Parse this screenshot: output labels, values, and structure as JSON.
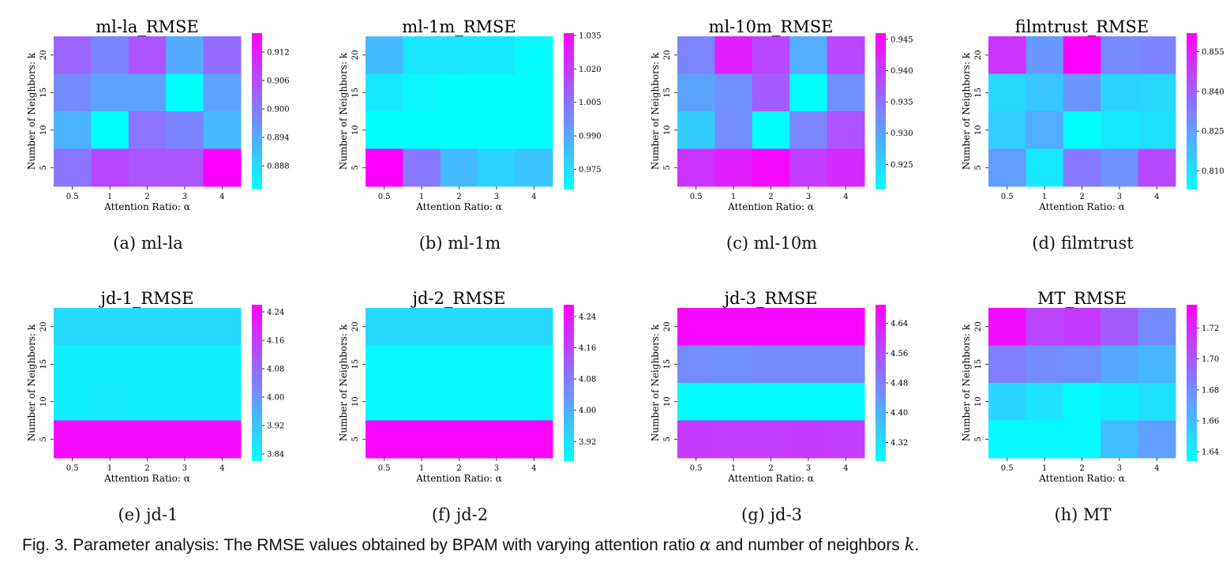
{
  "figure_caption": {
    "prefix": "Fig. 3. Parameter analysis: The RMSE values obtained by BPAM with varying attention ratio ",
    "alpha": "α",
    "middle": " and number of neighbors ",
    "k": "k",
    "suffix": "."
  },
  "colors": {
    "low": "#00ffff",
    "high": "#ff00ff"
  },
  "chart_data": [
    {
      "type": "heatmap",
      "title": "ml-la_RMSE",
      "subcaption_label": "(a)",
      "subcaption_name": "ml-la",
      "xlabel": "Attention Ratio: α",
      "ylabel": "Number of Neighbors: k",
      "x_ticks": [
        "0.5",
        "1",
        "2",
        "3",
        "4"
      ],
      "y_ticks": [
        "20",
        "15",
        "10",
        "5"
      ],
      "values": [
        [
          0.903,
          0.899,
          0.905,
          0.894,
          0.902
        ],
        [
          0.898,
          0.895,
          0.895,
          0.883,
          0.895
        ],
        [
          0.893,
          0.883,
          0.901,
          0.899,
          0.892
        ],
        [
          0.901,
          0.907,
          0.905,
          0.905,
          0.916
        ]
      ],
      "vmin": 0.883,
      "vmax": 0.916,
      "colorbar_ticks": [
        "0.888",
        "0.894",
        "0.900",
        "0.906",
        "0.912"
      ]
    },
    {
      "type": "heatmap",
      "title": "ml-1m_RMSE",
      "subcaption_label": "(b)",
      "subcaption_name": "ml-1m",
      "xlabel": "Attention Ratio: α",
      "ylabel": "Number of Neighbors: k",
      "x_ticks": [
        "0.5",
        "1",
        "2",
        "3",
        "4"
      ],
      "y_ticks": [
        "20",
        "15",
        "10",
        "5"
      ],
      "values": [
        [
          0.985,
          0.973,
          0.973,
          0.972,
          0.967
        ],
        [
          0.972,
          0.969,
          0.966,
          0.966,
          0.966
        ],
        [
          0.966,
          0.966,
          0.966,
          0.966,
          0.966
        ],
        [
          1.036,
          1.003,
          0.985,
          0.978,
          0.982
        ]
      ],
      "vmin": 0.966,
      "vmax": 1.036,
      "colorbar_ticks": [
        "0.975",
        "0.990",
        "1.005",
        "1.020",
        "1.035"
      ]
    },
    {
      "type": "heatmap",
      "title": "ml-10m_RMSE",
      "subcaption_label": "(c)",
      "subcaption_name": "ml-10m",
      "xlabel": "Attention Ratio: α",
      "ylabel": "Number of Neighbors: k",
      "x_ticks": [
        "0.5",
        "1",
        "2",
        "3",
        "4"
      ],
      "y_ticks": [
        "20",
        "15",
        "10",
        "5"
      ],
      "values": [
        [
          0.933,
          0.943,
          0.939,
          0.929,
          0.939
        ],
        [
          0.93,
          0.932,
          0.937,
          0.921,
          0.932
        ],
        [
          0.926,
          0.932,
          0.921,
          0.933,
          0.938
        ],
        [
          0.941,
          0.943,
          0.945,
          0.94,
          0.942
        ]
      ],
      "vmin": 0.921,
      "vmax": 0.946,
      "colorbar_ticks": [
        "0.925",
        "0.930",
        "0.935",
        "0.940",
        "0.945"
      ]
    },
    {
      "type": "heatmap",
      "title": "filmtrust_RMSE",
      "subcaption_label": "(d)",
      "subcaption_name": "filmtrust",
      "xlabel": "Attention Ratio: α",
      "ylabel": "Number of Neighbors: k",
      "x_ticks": [
        "0.5",
        "1",
        "2",
        "3",
        "4"
      ],
      "y_ticks": [
        "20",
        "15",
        "10",
        "5"
      ],
      "values": [
        [
          0.85,
          0.827,
          0.862,
          0.83,
          0.832
        ],
        [
          0.812,
          0.816,
          0.827,
          0.813,
          0.812
        ],
        [
          0.814,
          0.822,
          0.803,
          0.808,
          0.81
        ],
        [
          0.826,
          0.808,
          0.834,
          0.828,
          0.845
        ]
      ],
      "vmin": 0.803,
      "vmax": 0.862,
      "colorbar_ticks": [
        "0.810",
        "0.825",
        "0.840",
        "0.855"
      ]
    },
    {
      "type": "heatmap",
      "title": "jd-1_RMSE",
      "subcaption_label": "(e)",
      "subcaption_name": "jd-1",
      "xlabel": "Attention Ratio: α",
      "ylabel": "Number of Neighbors: k",
      "x_ticks": [
        "0.5",
        "1",
        "2",
        "3",
        "4"
      ],
      "y_ticks": [
        "20",
        "15",
        "10",
        "5"
      ],
      "values": [
        [
          3.885,
          3.885,
          3.885,
          3.885,
          3.885
        ],
        [
          3.85,
          3.85,
          3.85,
          3.85,
          3.85
        ],
        [
          3.85,
          3.855,
          3.85,
          3.85,
          3.85
        ],
        [
          4.245,
          4.245,
          4.245,
          4.245,
          4.245
        ]
      ],
      "vmin": 3.82,
      "vmax": 4.26,
      "colorbar_ticks": [
        "3.84",
        "3.92",
        "4.00",
        "4.08",
        "4.16",
        "4.24"
      ]
    },
    {
      "type": "heatmap",
      "title": "jd-2_RMSE",
      "subcaption_label": "(f)",
      "subcaption_name": "jd-2",
      "xlabel": "Attention Ratio: α",
      "ylabel": "Number of Neighbors: k",
      "x_ticks": [
        "0.5",
        "1",
        "2",
        "3",
        "4"
      ],
      "y_ticks": [
        "20",
        "15",
        "10",
        "5"
      ],
      "values": [
        [
          3.93,
          3.93,
          3.93,
          3.93,
          3.93
        ],
        [
          3.88,
          3.88,
          3.88,
          3.88,
          3.88
        ],
        [
          3.88,
          3.88,
          3.88,
          3.88,
          3.88
        ],
        [
          4.26,
          4.26,
          4.26,
          4.26,
          4.26
        ]
      ],
      "vmin": 3.87,
      "vmax": 4.27,
      "colorbar_ticks": [
        "3.92",
        "4.00",
        "4.08",
        "4.16",
        "4.24"
      ]
    },
    {
      "type": "heatmap",
      "title": "jd-3_RMSE",
      "subcaption_label": "(g)",
      "subcaption_name": "jd-3",
      "xlabel": "Attention Ratio: α",
      "ylabel": "Number of Neighbors: k",
      "x_ticks": [
        "0.5",
        "1",
        "2",
        "3",
        "4"
      ],
      "y_ticks": [
        "20",
        "15",
        "10",
        "5"
      ],
      "values": [
        [
          4.68,
          4.68,
          4.68,
          4.68,
          4.68
        ],
        [
          4.46,
          4.455,
          4.465,
          4.465,
          4.465
        ],
        [
          4.275,
          4.275,
          4.275,
          4.275,
          4.275
        ],
        [
          4.595,
          4.59,
          4.59,
          4.595,
          4.59
        ]
      ],
      "vmin": 4.27,
      "vmax": 4.69,
      "colorbar_ticks": [
        "4.32",
        "4.40",
        "4.48",
        "4.56",
        "4.64"
      ]
    },
    {
      "type": "heatmap",
      "title": "MT_RMSE",
      "subcaption_label": "(h)",
      "subcaption_name": "MT",
      "xlabel": "Attention Ratio: α",
      "ylabel": "Number of Neighbors: k",
      "x_ticks": [
        "0.5",
        "1",
        "2",
        "3",
        "4"
      ],
      "y_ticks": [
        "20",
        "15",
        "10",
        "5"
      ],
      "values": [
        [
          1.73,
          1.708,
          1.712,
          1.698,
          1.68
        ],
        [
          1.685,
          1.68,
          1.678,
          1.668,
          1.662
        ],
        [
          1.65,
          1.645,
          1.636,
          1.64,
          1.646
        ],
        [
          1.636,
          1.636,
          1.636,
          1.66,
          1.672
        ]
      ],
      "vmin": 1.634,
      "vmax": 1.735,
      "colorbar_ticks": [
        "1.64",
        "1.66",
        "1.68",
        "1.70",
        "1.72"
      ]
    }
  ]
}
